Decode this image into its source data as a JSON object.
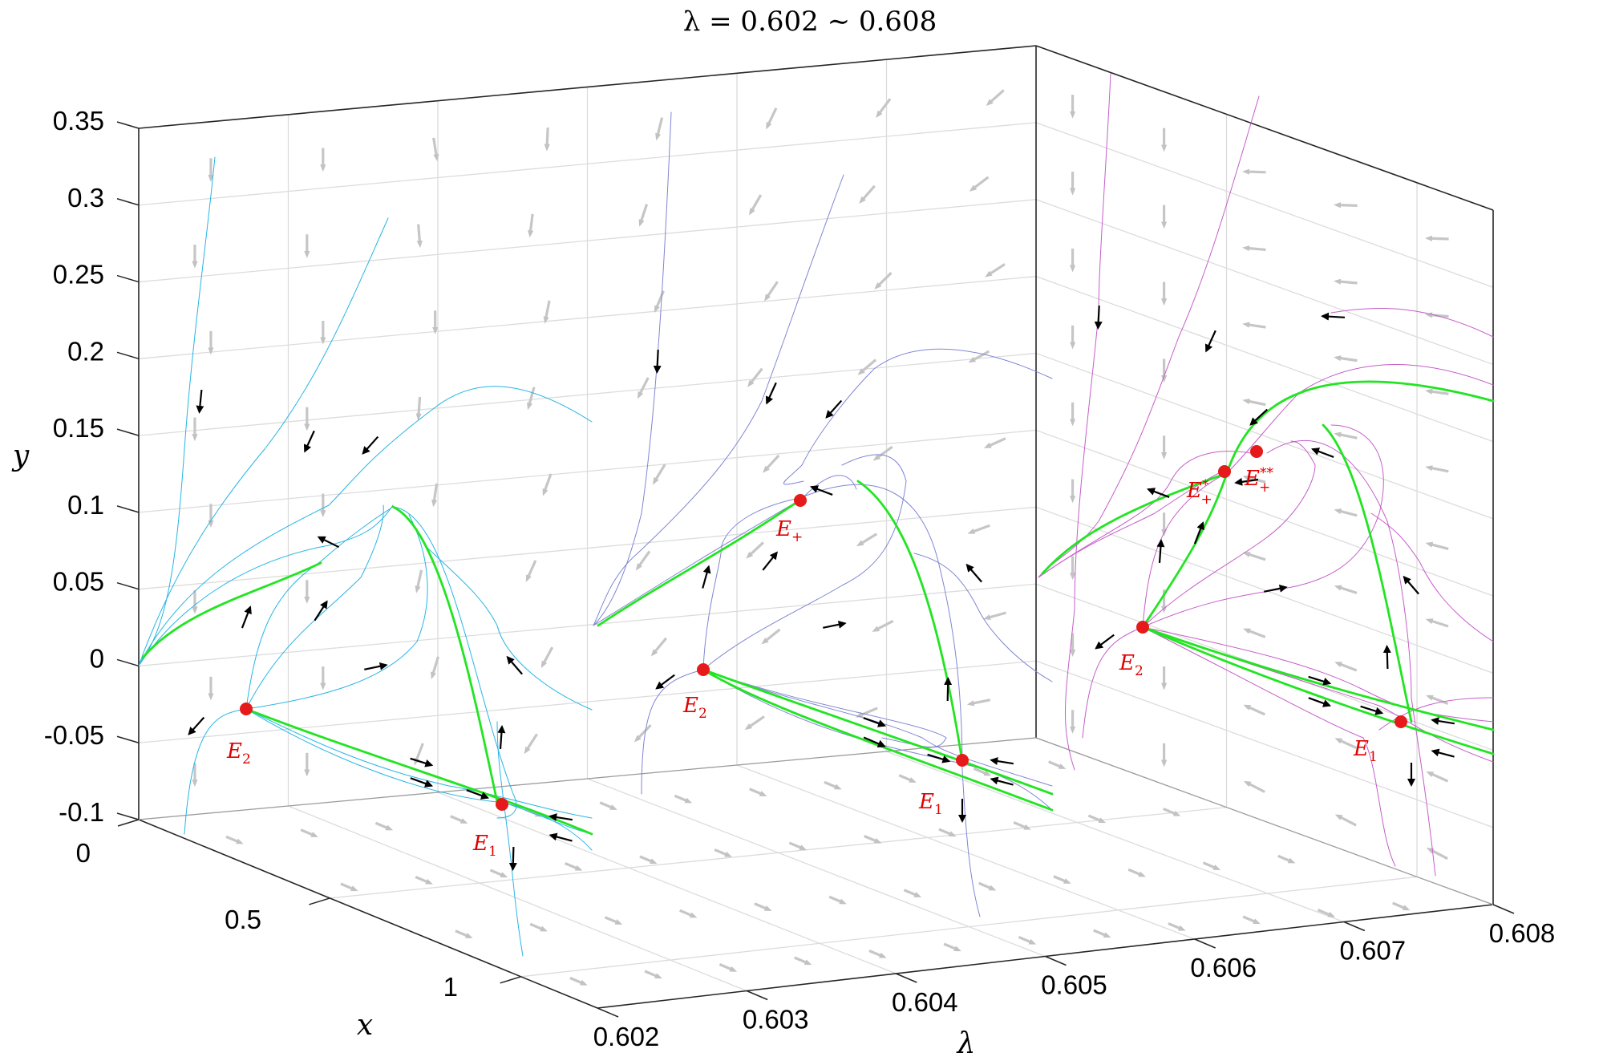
{
  "chart_data": {
    "type": "line",
    "projection": "3d",
    "title": "λ = 0.602 ∼ 0.608",
    "xlabel": "x",
    "ylabel": "y",
    "zlabel": "λ",
    "x_ticks": [
      "0",
      "0.5",
      "1"
    ],
    "y_ticks": [
      "0.35",
      "0.3",
      "0.25",
      "0.2",
      "0.15",
      "0.1",
      "0.05",
      "0",
      "-0.05",
      "-0.1"
    ],
    "lambda_ticks": [
      "0.602",
      "0.603",
      "0.604",
      "0.605",
      "0.606",
      "0.607",
      "0.608"
    ],
    "ylim": [
      -0.1,
      0.35
    ],
    "xlim": [
      0,
      1.2
    ],
    "lambda_lim": [
      0.602,
      0.608
    ],
    "grid": true,
    "colors": {
      "panel_1": "#26b5e4",
      "panel_2": "#7f86d2",
      "panel_3": "#c45ec9",
      "separatrix": "#22e422",
      "equilibrium": "#e61a1a",
      "vector_field": "#c8c8c8",
      "arrow": "#000000"
    },
    "panels": [
      {
        "lambda": 0.602,
        "equilibria": [
          {
            "name": "E",
            "sub": "2",
            "sup": "",
            "x": 0.18,
            "y": -0.03
          },
          {
            "name": "E",
            "sub": "1",
            "sup": "",
            "x": 0.92,
            "y": -0.02
          }
        ]
      },
      {
        "lambda": 0.605,
        "equilibria": [
          {
            "name": "E",
            "sub": "+",
            "sup": "",
            "x": 0.68,
            "y": 0.12
          },
          {
            "name": "E",
            "sub": "2",
            "sup": "",
            "x": 0.18,
            "y": -0.02
          },
          {
            "name": "E",
            "sub": "1",
            "sup": "",
            "x": 0.92,
            "y": -0.02
          }
        ]
      },
      {
        "lambda": 0.608,
        "equilibria": [
          {
            "name": "E",
            "sub": "+",
            "sup": "*",
            "x": 0.62,
            "y": 0.14
          },
          {
            "name": "E",
            "sub": "+",
            "sup": "**",
            "x": 0.7,
            "y": 0.15
          },
          {
            "name": "E",
            "sub": "2",
            "sup": "",
            "x": 0.18,
            "y": 0.01
          },
          {
            "name": "E",
            "sub": "1",
            "sup": "",
            "x": 0.92,
            "y": -0.02
          }
        ]
      }
    ]
  }
}
